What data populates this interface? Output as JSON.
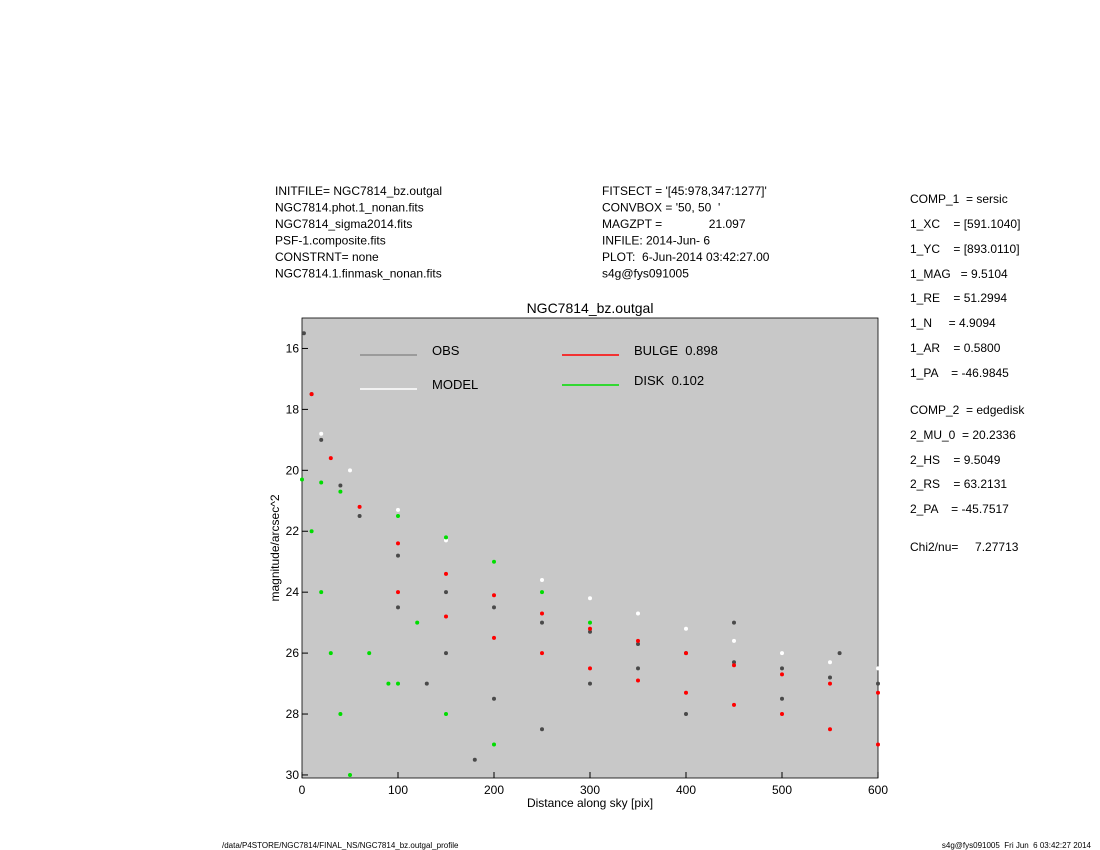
{
  "header": {
    "left": [
      "INITFILE= NGC7814_bz.outgal",
      "NGC7814.phot.1_nonan.fits",
      "NGC7814_sigma2014.fits",
      "PSF-1.composite.fits",
      "CONSTRNT= none",
      "NGC7814.1.finmask_nonan.fits"
    ],
    "middle": [
      "FITSECT = '[45:978,347:1277]'",
      "CONVBOX = '50, 50  '",
      "MAGZPT =              21.097",
      "INFILE: 2014-Jun- 6",
      "PLOT:  6-Jun-2014 03:42:27.00",
      "s4g@fys091005"
    ],
    "parameters": [
      "COMP_1  = sersic",
      "1_XC    = [591.1040]",
      "1_YC    = [893.0110]",
      "1_MAG   = 9.5104",
      "1_RE    = 51.2994",
      "1_N     = 4.9094",
      "1_AR    = 0.5800",
      "1_PA    = -46.9845",
      "COMP_2  = edgedisk",
      "2_MU_0  = 20.2336",
      "2_HS    = 9.5049",
      "2_RS    = 63.2131",
      "2_PA    = -45.7517",
      "Chi2/nu=     7.27713"
    ]
  },
  "footer": {
    "left": "/data/P4STORE/NGC7814/FINAL_NS/NGC7814_bz.outgal_profile",
    "right": "s4g@fys091005  Fri Jun  6 03:42:27 2014"
  },
  "chart_data": {
    "type": "scatter",
    "title": "NGC7814_bz.outgal",
    "x_label": "Distance along sky [pix]",
    "y_label": "magnitude/arcsec^2",
    "xlim": [
      0,
      600
    ],
    "xticks": [
      0,
      100,
      200,
      300,
      400,
      500,
      600
    ],
    "ylim": [
      15,
      30.1
    ],
    "yticks": [
      16,
      18,
      20,
      22,
      24,
      26,
      28,
      30
    ],
    "y_inverted": true,
    "background": "#c8c8c8",
    "series": [
      {
        "name": "OBS",
        "color": "#4a4a4a",
        "legend_color": "#8c8c8c",
        "x": [
          2,
          10,
          20,
          40,
          60,
          100,
          150,
          200,
          250,
          300,
          350,
          400,
          450,
          500,
          550,
          600,
          100,
          150,
          200,
          250,
          300,
          400,
          500,
          180,
          130,
          350,
          450,
          560
        ],
        "values": [
          15.5,
          17.5,
          19,
          20.5,
          21.5,
          22.8,
          24,
          24.5,
          25,
          25.3,
          25.7,
          26,
          26.3,
          26.5,
          26.8,
          27,
          24.5,
          26,
          27.5,
          28.5,
          27,
          28,
          27.5,
          29.5,
          27,
          26.5,
          25,
          26
        ]
      },
      {
        "name": "MODEL",
        "color": "#ffffff",
        "legend_color": "#ffffff",
        "x": [
          20,
          50,
          100,
          150,
          200,
          250,
          300,
          350,
          400,
          450,
          500,
          550,
          600
        ],
        "values": [
          18.8,
          20,
          21.3,
          22.3,
          23,
          23.6,
          24.2,
          24.7,
          25.2,
          25.6,
          26,
          26.3,
          26.5
        ]
      },
      {
        "name": "BULGE  0.898",
        "color": "#ff0000",
        "legend_color": "#ff0000",
        "x": [
          10,
          30,
          60,
          100,
          150,
          200,
          250,
          300,
          350,
          400,
          450,
          500,
          550,
          600,
          100,
          150,
          200,
          250,
          300,
          350,
          400,
          450,
          500,
          550,
          600
        ],
        "values": [
          17.5,
          19.6,
          21.2,
          22.4,
          23.4,
          24.1,
          24.7,
          25.2,
          25.6,
          26,
          26.4,
          26.7,
          27,
          27.3,
          24,
          24.8,
          25.5,
          26,
          26.5,
          26.9,
          27.3,
          27.7,
          28,
          28.5,
          29
        ]
      },
      {
        "name": "DISK  0.102",
        "color": "#00dd00",
        "legend_color": "#00dd00",
        "x": [
          0,
          20,
          40,
          10,
          20,
          30,
          40,
          50,
          100,
          150,
          200,
          100,
          150,
          200,
          250,
          300,
          70,
          90,
          120
        ],
        "values": [
          20.3,
          20.4,
          20.7,
          22,
          24,
          26,
          28,
          30,
          27,
          28,
          29,
          21.5,
          22.2,
          23,
          24,
          25,
          26,
          27,
          25
        ]
      }
    ]
  }
}
